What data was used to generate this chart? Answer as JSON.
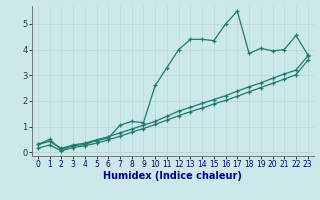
{
  "xlabel": "Humidex (Indice chaleur)",
  "x_values": [
    0,
    1,
    2,
    3,
    4,
    5,
    6,
    7,
    8,
    9,
    10,
    11,
    12,
    13,
    14,
    15,
    16,
    17,
    18,
    19,
    20,
    21,
    22,
    23
  ],
  "line1_y": [
    0.3,
    0.5,
    0.1,
    0.25,
    0.3,
    0.45,
    0.55,
    1.05,
    1.2,
    1.15,
    2.6,
    3.3,
    4.0,
    4.4,
    4.4,
    4.35,
    5.0,
    5.5,
    3.85,
    4.05,
    3.95,
    4.0,
    4.55,
    3.8
  ],
  "line2_y": [
    0.3,
    0.42,
    0.15,
    0.28,
    0.35,
    0.48,
    0.6,
    0.75,
    0.9,
    1.05,
    1.2,
    1.4,
    1.6,
    1.75,
    1.9,
    2.05,
    2.2,
    2.38,
    2.55,
    2.7,
    2.88,
    3.05,
    3.2,
    3.75
  ],
  "line3_y": [
    0.15,
    0.28,
    0.05,
    0.18,
    0.25,
    0.35,
    0.48,
    0.62,
    0.78,
    0.92,
    1.08,
    1.25,
    1.42,
    1.58,
    1.72,
    1.88,
    2.02,
    2.18,
    2.35,
    2.52,
    2.68,
    2.85,
    3.02,
    3.58
  ],
  "line_color": "#1e7b6e",
  "bg_color": "#cce8e8",
  "grid_color": "#b8d8d8",
  "ylim": [
    -0.15,
    5.7
  ],
  "xlim": [
    -0.5,
    23.5
  ],
  "yticks": [
    0,
    1,
    2,
    3,
    4,
    5
  ],
  "xticks": [
    0,
    1,
    2,
    3,
    4,
    5,
    6,
    7,
    8,
    9,
    10,
    11,
    12,
    13,
    14,
    15,
    16,
    17,
    18,
    19,
    20,
    21,
    22,
    23
  ],
  "xlabel_color": "#00008b",
  "xlabel_fontsize": 7,
  "tick_fontsize": 5.5,
  "ytick_fontsize": 6
}
